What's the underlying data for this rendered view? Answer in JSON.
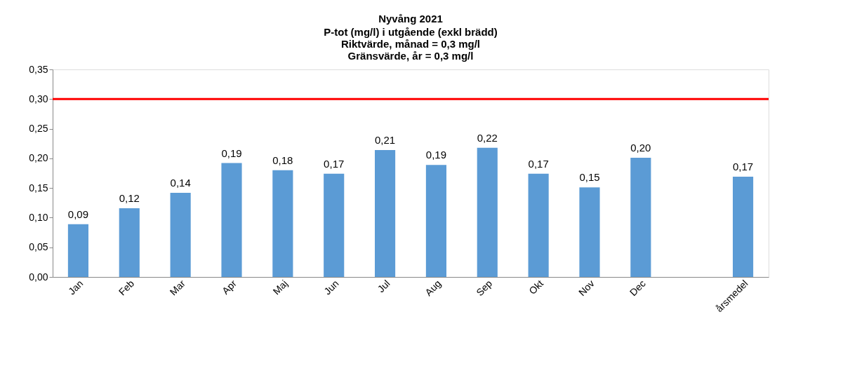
{
  "chart_data": {
    "type": "bar",
    "title": "Nyvång 2021",
    "subtitle": "P-tot (mg/l) i utgående (exkl brädd)\nRiktvärde, månad = 0,3 mg/l\nGränsvärde, år = 0,3 mg/l",
    "categories": [
      "Jan",
      "Feb",
      "Mar",
      "Apr",
      "Maj",
      "Jun",
      "Jul",
      "Aug",
      "Sep",
      "Okt",
      "Nov",
      "Dec",
      null,
      "årsmedel"
    ],
    "values": [
      0.089,
      0.116,
      0.142,
      0.192,
      0.18,
      0.174,
      0.214,
      0.189,
      0.218,
      0.174,
      0.151,
      0.201,
      null,
      0.169
    ],
    "value_labels": [
      "0,09",
      "0,12",
      "0,14",
      "0,19",
      "0,18",
      "0,17",
      "0,21",
      "0,19",
      "0,22",
      "0,17",
      "0,15",
      "0,20",
      null,
      "0,17"
    ],
    "color": "#5b9bd5",
    "ylim": [
      0,
      0.35
    ],
    "yticks": [
      {
        "value": 0,
        "label": "0,00"
      },
      {
        "value": 0.05,
        "label": "0,05"
      },
      {
        "value": 0.1,
        "label": "0,10"
      },
      {
        "value": 0.15,
        "label": "0,15"
      },
      {
        "value": 0.2,
        "label": "0,20"
      },
      {
        "value": 0.25,
        "label": "0,25"
      },
      {
        "value": 0.3,
        "label": "0,30"
      },
      {
        "value": 0.35,
        "label": "0,35"
      }
    ],
    "ref_lines": [
      {
        "axis": "y",
        "value": 0.3,
        "color": "#ff0000"
      }
    ],
    "grid": false
  }
}
